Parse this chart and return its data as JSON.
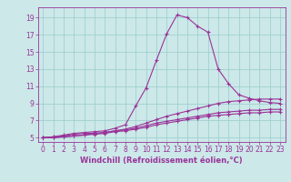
{
  "xlabel": "Windchill (Refroidissement éolien,°C)",
  "bg_color": "#cce8e8",
  "grid_color": "#99cccc",
  "line_color": "#993399",
  "xlim": [
    -0.5,
    23.5
  ],
  "ylim": [
    4.5,
    20.2
  ],
  "xticks": [
    0,
    1,
    2,
    3,
    4,
    5,
    6,
    7,
    8,
    9,
    10,
    11,
    12,
    13,
    14,
    15,
    16,
    17,
    18,
    19,
    20,
    21,
    22,
    23
  ],
  "yticks": [
    5,
    7,
    9,
    11,
    13,
    15,
    17,
    19
  ],
  "line1_x": [
    0,
    1,
    2,
    3,
    4,
    5,
    6,
    7,
    8,
    9,
    10,
    11,
    12,
    13,
    14,
    15,
    16,
    17,
    18,
    19,
    20,
    21,
    22,
    23
  ],
  "line1_y": [
    5.0,
    5.1,
    5.3,
    5.5,
    5.6,
    5.7,
    5.8,
    6.1,
    6.5,
    8.7,
    10.8,
    14.0,
    17.1,
    19.3,
    19.0,
    18.0,
    17.3,
    13.0,
    11.3,
    10.0,
    9.6,
    9.3,
    9.1,
    9.0
  ],
  "line2_x": [
    0,
    1,
    2,
    3,
    4,
    5,
    6,
    7,
    8,
    9,
    10,
    11,
    12,
    13,
    14,
    15,
    16,
    17,
    18,
    19,
    20,
    21,
    22,
    23
  ],
  "line2_y": [
    5.0,
    5.1,
    5.2,
    5.4,
    5.5,
    5.5,
    5.6,
    5.8,
    6.0,
    6.3,
    6.7,
    7.1,
    7.5,
    7.8,
    8.1,
    8.4,
    8.7,
    9.0,
    9.2,
    9.3,
    9.4,
    9.5,
    9.5,
    9.5
  ],
  "line3_x": [
    0,
    1,
    2,
    3,
    4,
    5,
    6,
    7,
    8,
    9,
    10,
    11,
    12,
    13,
    14,
    15,
    16,
    17,
    18,
    19,
    20,
    21,
    22,
    23
  ],
  "line3_y": [
    5.0,
    5.0,
    5.1,
    5.2,
    5.3,
    5.5,
    5.6,
    5.8,
    5.9,
    6.1,
    6.4,
    6.7,
    6.9,
    7.1,
    7.3,
    7.5,
    7.7,
    7.9,
    8.0,
    8.1,
    8.2,
    8.2,
    8.3,
    8.3
  ],
  "line4_x": [
    0,
    1,
    2,
    3,
    4,
    5,
    6,
    7,
    8,
    9,
    10,
    11,
    12,
    13,
    14,
    15,
    16,
    17,
    18,
    19,
    20,
    21,
    22,
    23
  ],
  "line4_y": [
    5.0,
    5.0,
    5.1,
    5.2,
    5.3,
    5.4,
    5.5,
    5.7,
    5.8,
    6.0,
    6.2,
    6.5,
    6.7,
    6.9,
    7.1,
    7.3,
    7.5,
    7.6,
    7.7,
    7.8,
    7.9,
    7.9,
    8.0,
    8.0
  ],
  "marker": "+",
  "markersize": 3,
  "linewidth": 0.8,
  "tick_fontsize": 5.5,
  "xlabel_fontsize": 6.0
}
